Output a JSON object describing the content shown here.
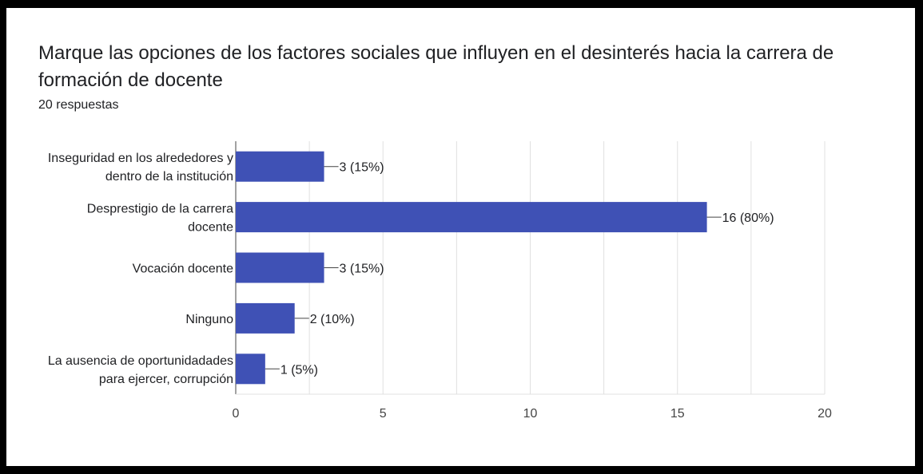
{
  "title": "Marque las opciones de los factores sociales que influyen en el desinterés hacia la carrera de formación de docente",
  "subtitle": "20 respuestas",
  "colors": {
    "bar": "#3f51b5",
    "grid": "#e0e0e0",
    "text": "#202124",
    "axis": "#444444"
  },
  "chart_data": {
    "type": "bar",
    "orientation": "horizontal",
    "categories": [
      [
        "Inseguridad en los alrededores y",
        "dentro de la institución"
      ],
      [
        "Desprestigio de la carrera",
        "docente"
      ],
      [
        "Vocación docente"
      ],
      [
        "Ninguno"
      ],
      [
        "La ausencia de oportunidadades",
        "para ejercer, corrupción"
      ]
    ],
    "values": [
      3,
      16,
      3,
      2,
      1
    ],
    "data_labels": [
      "3 (15%)",
      "16 (80%)",
      "3 (15%)",
      "2 (10%)",
      "1 (5%)"
    ],
    "xlim": [
      0,
      20
    ],
    "xticks": [
      0,
      5,
      10,
      15,
      20
    ],
    "grid": true,
    "legend": "none"
  }
}
